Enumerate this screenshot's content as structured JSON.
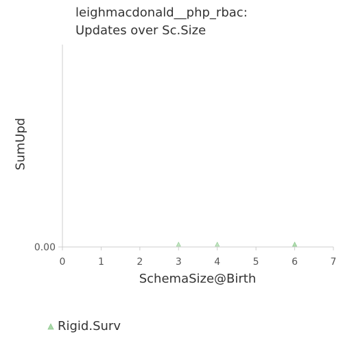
{
  "chart_data": {
    "type": "scatter",
    "title_lines": [
      "leighmacdonald__php_rbac:",
      "Updates over Sc.Size"
    ],
    "xlabel": "SchemaSize@Birth",
    "ylabel": "SumUpd",
    "xlim": [
      0,
      7
    ],
    "x_ticks": [
      "0",
      "1",
      "2",
      "3",
      "4",
      "5",
      "6",
      "7"
    ],
    "y_ticks": [
      "0.00"
    ],
    "grid": false,
    "legend_position": "bottom-left",
    "series": [
      {
        "name": "Rigid.Surv",
        "marker": "triangle",
        "color": "#a8d8a8",
        "points": [
          {
            "x": 3,
            "y": 0
          },
          {
            "x": 4,
            "y": 0
          },
          {
            "x": 6,
            "y": 0
          },
          {
            "x": 6,
            "y": 0
          }
        ]
      }
    ]
  }
}
